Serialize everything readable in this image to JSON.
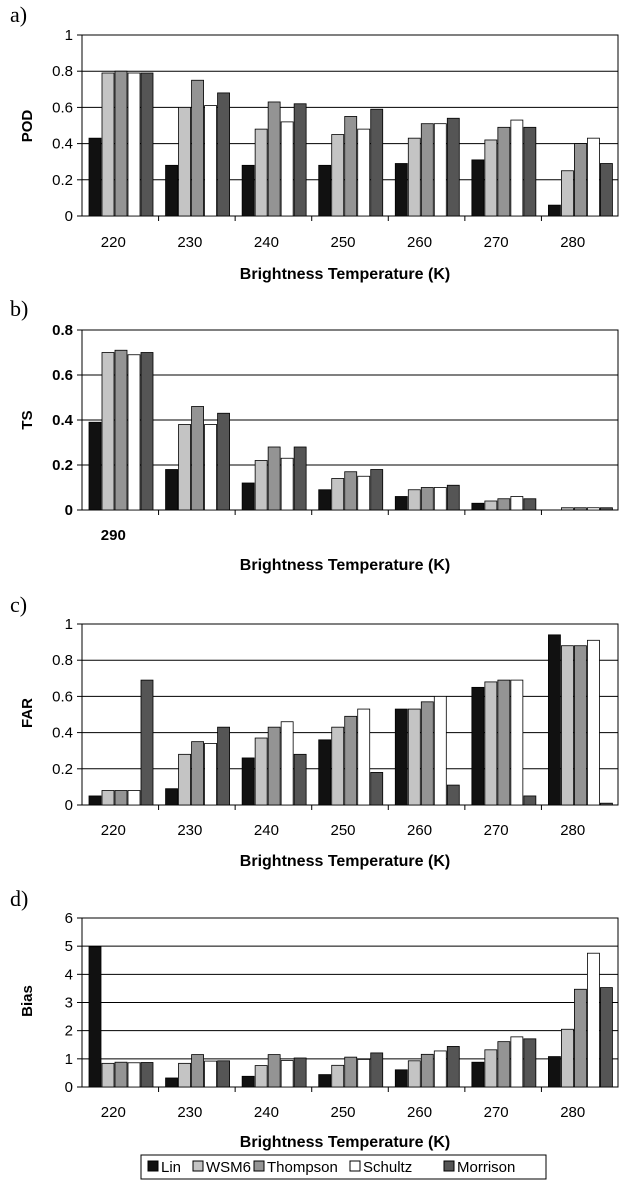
{
  "chart_data": [
    {
      "panel": "a)",
      "type": "bar",
      "ylabel": "POD",
      "xlabel": "Brightness Temperature (K)",
      "ylim": [
        0,
        1
      ],
      "yticks": [
        "0",
        "0.2",
        "0.4",
        "0.6",
        "0.8",
        "1"
      ],
      "categories": [
        "220",
        "230",
        "240",
        "250",
        "260",
        "270",
        "280"
      ],
      "series": [
        {
          "name": "Lin",
          "values": [
            0.43,
            0.28,
            0.28,
            0.28,
            0.29,
            0.31,
            0.06
          ]
        },
        {
          "name": "WSM6",
          "values": [
            0.79,
            0.6,
            0.48,
            0.45,
            0.43,
            0.42,
            0.25
          ]
        },
        {
          "name": "Thompson",
          "values": [
            0.8,
            0.75,
            0.63,
            0.55,
            0.51,
            0.49,
            0.4
          ]
        },
        {
          "name": "Schultz",
          "values": [
            0.79,
            0.61,
            0.52,
            0.48,
            0.51,
            0.53,
            0.43
          ]
        },
        {
          "name": "Morrison",
          "values": [
            0.79,
            0.68,
            0.62,
            0.59,
            0.54,
            0.49,
            0.29
          ]
        }
      ]
    },
    {
      "panel": "b)",
      "type": "bar",
      "ylabel": "TS",
      "xlabel": "Brightness Temperature (K)",
      "ylim": [
        0,
        0.8
      ],
      "yticks": [
        "0",
        "0.2",
        "0.4",
        "0.6",
        "0.8"
      ],
      "categories": [
        "290",
        "",
        "",
        "",
        "",
        "",
        ""
      ],
      "series": [
        {
          "name": "Lin",
          "values": [
            0.39,
            0.18,
            0.12,
            0.09,
            0.06,
            0.03,
            0.0
          ]
        },
        {
          "name": "WSM6",
          "values": [
            0.7,
            0.38,
            0.22,
            0.14,
            0.09,
            0.04,
            0.01
          ]
        },
        {
          "name": "Thompson",
          "values": [
            0.71,
            0.46,
            0.28,
            0.17,
            0.1,
            0.05,
            0.01
          ]
        },
        {
          "name": "Schultz",
          "values": [
            0.69,
            0.38,
            0.23,
            0.15,
            0.1,
            0.06,
            0.01
          ]
        },
        {
          "name": "Morrison",
          "values": [
            0.7,
            0.43,
            0.28,
            0.18,
            0.11,
            0.05,
            0.01
          ]
        }
      ]
    },
    {
      "panel": "c)",
      "type": "bar",
      "ylabel": "FAR",
      "xlabel": "Brightness Temperature (K)",
      "ylim": [
        0,
        1
      ],
      "yticks": [
        "0",
        "0.2",
        "0.4",
        "0.6",
        "0.8",
        "1"
      ],
      "categories": [
        "220",
        "230",
        "240",
        "250",
        "260",
        "270",
        "280"
      ],
      "series": [
        {
          "name": "Lin",
          "values": [
            0.05,
            0.09,
            0.26,
            0.36,
            0.53,
            0.65,
            0.94
          ]
        },
        {
          "name": "WSM6",
          "values": [
            0.08,
            0.28,
            0.37,
            0.43,
            0.53,
            0.68,
            0.88
          ]
        },
        {
          "name": "Thompson",
          "values": [
            0.08,
            0.35,
            0.43,
            0.49,
            0.57,
            0.69,
            0.88
          ]
        },
        {
          "name": "Schultz",
          "values": [
            0.08,
            0.34,
            0.46,
            0.53,
            0.6,
            0.69,
            0.91
          ]
        },
        {
          "name": "Morrison",
          "values": [
            0.69,
            0.43,
            0.28,
            0.18,
            0.11,
            0.05,
            0.01
          ]
        }
      ]
    },
    {
      "panel": "d)",
      "type": "bar",
      "ylabel": "Bias",
      "xlabel": "Brightness Temperature (K)",
      "ylim": [
        0,
        6
      ],
      "yticks": [
        "0",
        "1",
        "2",
        "3",
        "4",
        "5",
        "6"
      ],
      "categories": [
        "220",
        "230",
        "240",
        "250",
        "260",
        "270",
        "280"
      ],
      "series": [
        {
          "name": "Lin",
          "values": [
            4.98,
            0.32,
            0.38,
            0.44,
            0.61,
            0.88,
            1.08
          ]
        },
        {
          "name": "WSM6",
          "values": [
            0.84,
            0.84,
            0.76,
            0.77,
            0.93,
            1.32,
            2.05
          ]
        },
        {
          "name": "Thompson",
          "values": [
            0.88,
            1.15,
            1.15,
            1.06,
            1.16,
            1.61,
            3.47
          ]
        },
        {
          "name": "Schultz",
          "values": [
            0.86,
            0.92,
            0.94,
            0.98,
            1.28,
            1.78,
            4.75
          ]
        },
        {
          "name": "Morrison",
          "values": [
            0.87,
            0.93,
            1.03,
            1.21,
            1.44,
            1.71,
            3.53
          ]
        }
      ]
    }
  ],
  "legend": {
    "placement": "bottom-center",
    "items": [
      {
        "label": "Lin",
        "color": "#111111"
      },
      {
        "label": "WSM6",
        "color": "#c4c4c4"
      },
      {
        "label": "Thompson",
        "color": "#949494"
      },
      {
        "label": "Schultz",
        "color": "#ffffff"
      },
      {
        "label": "Morrison",
        "color": "#555555"
      }
    ]
  },
  "colors": {
    "series": [
      "#111111",
      "#c4c4c4",
      "#949494",
      "#ffffff",
      "#555555"
    ],
    "gridline": "#000000",
    "background": "#ffffff"
  }
}
